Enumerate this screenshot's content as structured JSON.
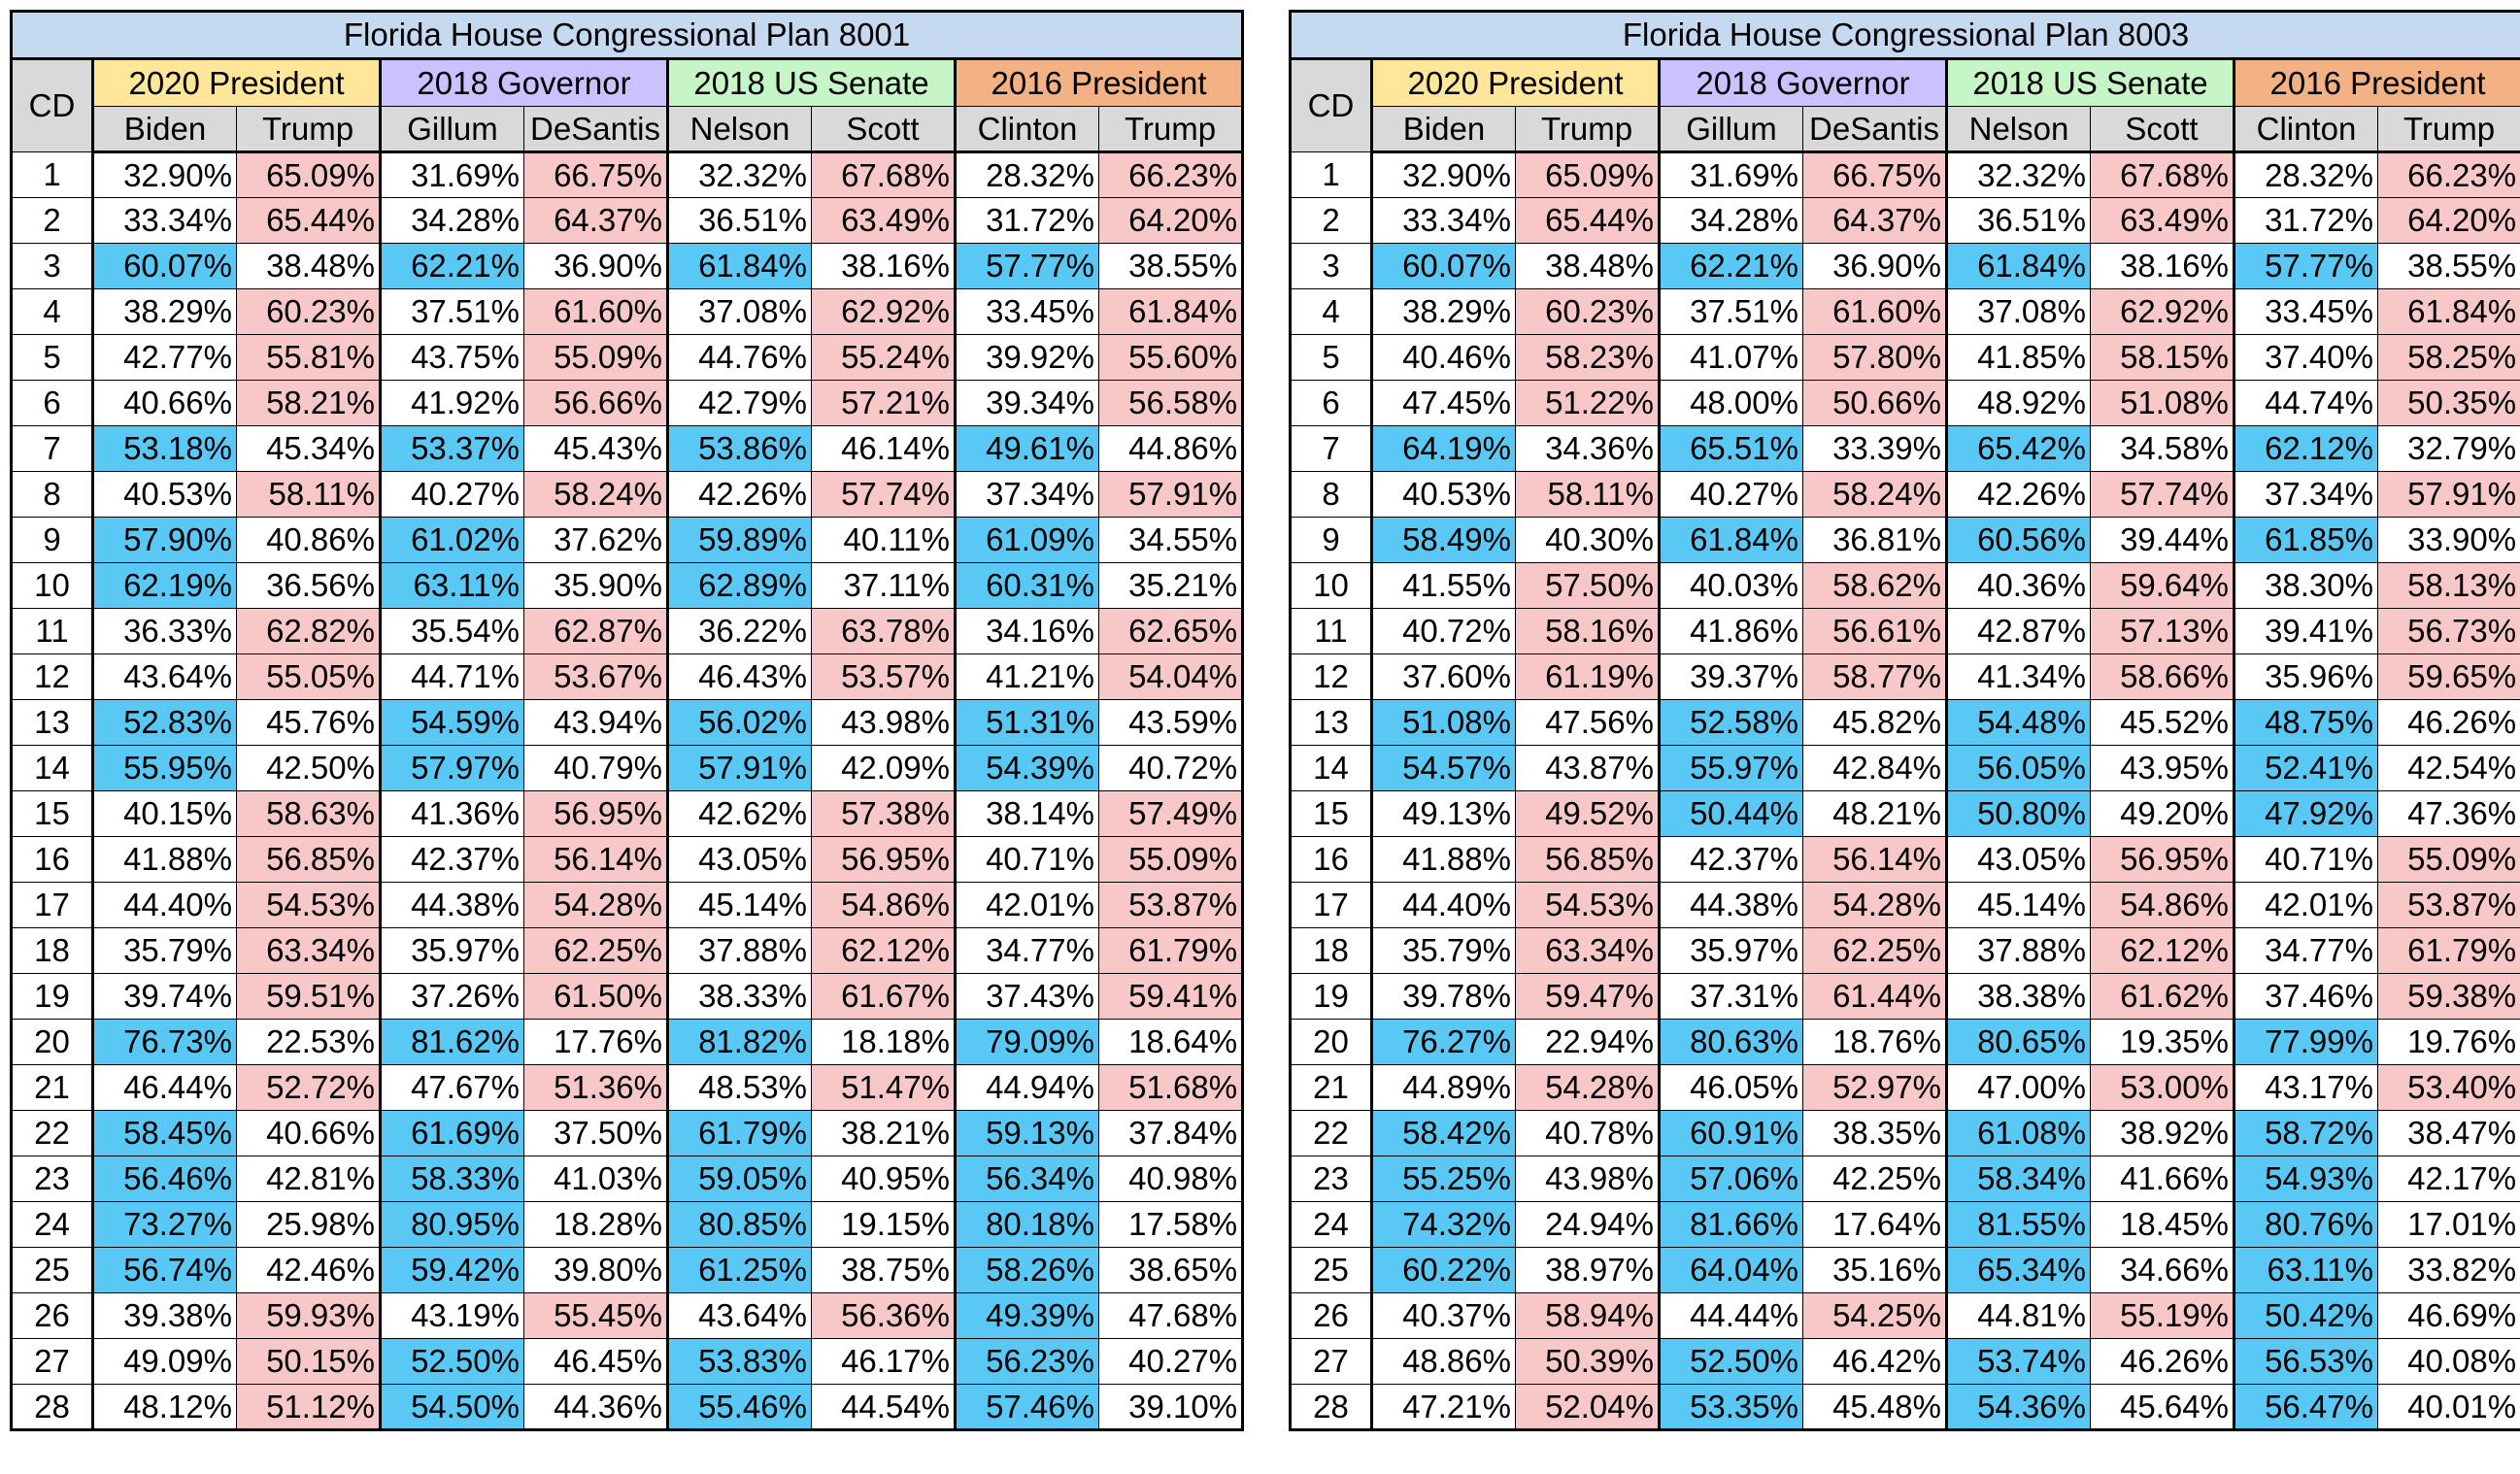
{
  "colors": {
    "title_bg": "#c5d9f1",
    "candidate_header_bg": "#d9d9d9",
    "dem_win_highlight": "#5ac8f5",
    "rep_win_highlight": "#f8c8c8",
    "race_2020_president": "#ffe699",
    "race_2018_governor": "#c9c2ff",
    "race_2018_us_senate": "#c6f5c6",
    "race_2016_president": "#f4b183"
  },
  "cd_header": "CD",
  "races": [
    {
      "label": "2020 President",
      "color_key": "race_2020_president",
      "dem": "Biden",
      "rep": "Trump"
    },
    {
      "label": "2018 Governor",
      "color_key": "race_2018_governor",
      "dem": "Gillum",
      "rep": "DeSantis"
    },
    {
      "label": "2018 US Senate",
      "color_key": "race_2018_us_senate",
      "dem": "Nelson",
      "rep": "Scott"
    },
    {
      "label": "2016 President",
      "color_key": "race_2016_president",
      "dem": "Clinton",
      "rep": "Trump"
    }
  ],
  "tables": [
    {
      "title": "Florida House Congressional Plan 8001",
      "rows": [
        {
          "cd": "1",
          "values": [
            "32.90%",
            "65.09%",
            "31.69%",
            "66.75%",
            "32.32%",
            "67.68%",
            "28.32%",
            "66.23%"
          ]
        },
        {
          "cd": "2",
          "values": [
            "33.34%",
            "65.44%",
            "34.28%",
            "64.37%",
            "36.51%",
            "63.49%",
            "31.72%",
            "64.20%"
          ]
        },
        {
          "cd": "3",
          "values": [
            "60.07%",
            "38.48%",
            "62.21%",
            "36.90%",
            "61.84%",
            "38.16%",
            "57.77%",
            "38.55%"
          ]
        },
        {
          "cd": "4",
          "values": [
            "38.29%",
            "60.23%",
            "37.51%",
            "61.60%",
            "37.08%",
            "62.92%",
            "33.45%",
            "61.84%"
          ]
        },
        {
          "cd": "5",
          "values": [
            "42.77%",
            "55.81%",
            "43.75%",
            "55.09%",
            "44.76%",
            "55.24%",
            "39.92%",
            "55.60%"
          ]
        },
        {
          "cd": "6",
          "values": [
            "40.66%",
            "58.21%",
            "41.92%",
            "56.66%",
            "42.79%",
            "57.21%",
            "39.34%",
            "56.58%"
          ]
        },
        {
          "cd": "7",
          "values": [
            "53.18%",
            "45.34%",
            "53.37%",
            "45.43%",
            "53.86%",
            "46.14%",
            "49.61%",
            "44.86%"
          ]
        },
        {
          "cd": "8",
          "values": [
            "40.53%",
            "58.11%",
            "40.27%",
            "58.24%",
            "42.26%",
            "57.74%",
            "37.34%",
            "57.91%"
          ]
        },
        {
          "cd": "9",
          "values": [
            "57.90%",
            "40.86%",
            "61.02%",
            "37.62%",
            "59.89%",
            "40.11%",
            "61.09%",
            "34.55%"
          ]
        },
        {
          "cd": "10",
          "values": [
            "62.19%",
            "36.56%",
            "63.11%",
            "35.90%",
            "62.89%",
            "37.11%",
            "60.31%",
            "35.21%"
          ]
        },
        {
          "cd": "11",
          "values": [
            "36.33%",
            "62.82%",
            "35.54%",
            "62.87%",
            "36.22%",
            "63.78%",
            "34.16%",
            "62.65%"
          ]
        },
        {
          "cd": "12",
          "values": [
            "43.64%",
            "55.05%",
            "44.71%",
            "53.67%",
            "46.43%",
            "53.57%",
            "41.21%",
            "54.04%"
          ]
        },
        {
          "cd": "13",
          "values": [
            "52.83%",
            "45.76%",
            "54.59%",
            "43.94%",
            "56.02%",
            "43.98%",
            "51.31%",
            "43.59%"
          ]
        },
        {
          "cd": "14",
          "values": [
            "55.95%",
            "42.50%",
            "57.97%",
            "40.79%",
            "57.91%",
            "42.09%",
            "54.39%",
            "40.72%"
          ]
        },
        {
          "cd": "15",
          "values": [
            "40.15%",
            "58.63%",
            "41.36%",
            "56.95%",
            "42.62%",
            "57.38%",
            "38.14%",
            "57.49%"
          ]
        },
        {
          "cd": "16",
          "values": [
            "41.88%",
            "56.85%",
            "42.37%",
            "56.14%",
            "43.05%",
            "56.95%",
            "40.71%",
            "55.09%"
          ]
        },
        {
          "cd": "17",
          "values": [
            "44.40%",
            "54.53%",
            "44.38%",
            "54.28%",
            "45.14%",
            "54.86%",
            "42.01%",
            "53.87%"
          ]
        },
        {
          "cd": "18",
          "values": [
            "35.79%",
            "63.34%",
            "35.97%",
            "62.25%",
            "37.88%",
            "62.12%",
            "34.77%",
            "61.79%"
          ]
        },
        {
          "cd": "19",
          "values": [
            "39.74%",
            "59.51%",
            "37.26%",
            "61.50%",
            "38.33%",
            "61.67%",
            "37.43%",
            "59.41%"
          ]
        },
        {
          "cd": "20",
          "values": [
            "76.73%",
            "22.53%",
            "81.62%",
            "17.76%",
            "81.82%",
            "18.18%",
            "79.09%",
            "18.64%"
          ]
        },
        {
          "cd": "21",
          "values": [
            "46.44%",
            "52.72%",
            "47.67%",
            "51.36%",
            "48.53%",
            "51.47%",
            "44.94%",
            "51.68%"
          ]
        },
        {
          "cd": "22",
          "values": [
            "58.45%",
            "40.66%",
            "61.69%",
            "37.50%",
            "61.79%",
            "38.21%",
            "59.13%",
            "37.84%"
          ]
        },
        {
          "cd": "23",
          "values": [
            "56.46%",
            "42.81%",
            "58.33%",
            "41.03%",
            "59.05%",
            "40.95%",
            "56.34%",
            "40.98%"
          ]
        },
        {
          "cd": "24",
          "values": [
            "73.27%",
            "25.98%",
            "80.95%",
            "18.28%",
            "80.85%",
            "19.15%",
            "80.18%",
            "17.58%"
          ]
        },
        {
          "cd": "25",
          "values": [
            "56.74%",
            "42.46%",
            "59.42%",
            "39.80%",
            "61.25%",
            "38.75%",
            "58.26%",
            "38.65%"
          ]
        },
        {
          "cd": "26",
          "values": [
            "39.38%",
            "59.93%",
            "43.19%",
            "55.45%",
            "43.64%",
            "56.36%",
            "49.39%",
            "47.68%"
          ]
        },
        {
          "cd": "27",
          "values": [
            "49.09%",
            "50.15%",
            "52.50%",
            "46.45%",
            "53.83%",
            "46.17%",
            "56.23%",
            "40.27%"
          ]
        },
        {
          "cd": "28",
          "values": [
            "48.12%",
            "51.12%",
            "54.50%",
            "44.36%",
            "55.46%",
            "44.54%",
            "57.46%",
            "39.10%"
          ]
        }
      ]
    },
    {
      "title": "Florida House Congressional Plan 8003",
      "rows": [
        {
          "cd": "1",
          "values": [
            "32.90%",
            "65.09%",
            "31.69%",
            "66.75%",
            "32.32%",
            "67.68%",
            "28.32%",
            "66.23%"
          ]
        },
        {
          "cd": "2",
          "values": [
            "33.34%",
            "65.44%",
            "34.28%",
            "64.37%",
            "36.51%",
            "63.49%",
            "31.72%",
            "64.20%"
          ]
        },
        {
          "cd": "3",
          "values": [
            "60.07%",
            "38.48%",
            "62.21%",
            "36.90%",
            "61.84%",
            "38.16%",
            "57.77%",
            "38.55%"
          ]
        },
        {
          "cd": "4",
          "values": [
            "38.29%",
            "60.23%",
            "37.51%",
            "61.60%",
            "37.08%",
            "62.92%",
            "33.45%",
            "61.84%"
          ]
        },
        {
          "cd": "5",
          "values": [
            "40.46%",
            "58.23%",
            "41.07%",
            "57.80%",
            "41.85%",
            "58.15%",
            "37.40%",
            "58.25%"
          ]
        },
        {
          "cd": "6",
          "values": [
            "47.45%",
            "51.22%",
            "48.00%",
            "50.66%",
            "48.92%",
            "51.08%",
            "44.74%",
            "50.35%"
          ]
        },
        {
          "cd": "7",
          "values": [
            "64.19%",
            "34.36%",
            "65.51%",
            "33.39%",
            "65.42%",
            "34.58%",
            "62.12%",
            "32.79%"
          ]
        },
        {
          "cd": "8",
          "values": [
            "40.53%",
            "58.11%",
            "40.27%",
            "58.24%",
            "42.26%",
            "57.74%",
            "37.34%",
            "57.91%"
          ]
        },
        {
          "cd": "9",
          "values": [
            "58.49%",
            "40.30%",
            "61.84%",
            "36.81%",
            "60.56%",
            "39.44%",
            "61.85%",
            "33.90%"
          ]
        },
        {
          "cd": "10",
          "values": [
            "41.55%",
            "57.50%",
            "40.03%",
            "58.62%",
            "40.36%",
            "59.64%",
            "38.30%",
            "58.13%"
          ]
        },
        {
          "cd": "11",
          "values": [
            "40.72%",
            "58.16%",
            "41.86%",
            "56.61%",
            "42.87%",
            "57.13%",
            "39.41%",
            "56.73%"
          ]
        },
        {
          "cd": "12",
          "values": [
            "37.60%",
            "61.19%",
            "39.37%",
            "58.77%",
            "41.34%",
            "58.66%",
            "35.96%",
            "59.65%"
          ]
        },
        {
          "cd": "13",
          "values": [
            "51.08%",
            "47.56%",
            "52.58%",
            "45.82%",
            "54.48%",
            "45.52%",
            "48.75%",
            "46.26%"
          ]
        },
        {
          "cd": "14",
          "values": [
            "54.57%",
            "43.87%",
            "55.97%",
            "42.84%",
            "56.05%",
            "43.95%",
            "52.41%",
            "42.54%"
          ]
        },
        {
          "cd": "15",
          "values": [
            "49.13%",
            "49.52%",
            "50.44%",
            "48.21%",
            "50.80%",
            "49.20%",
            "47.92%",
            "47.36%"
          ]
        },
        {
          "cd": "16",
          "values": [
            "41.88%",
            "56.85%",
            "42.37%",
            "56.14%",
            "43.05%",
            "56.95%",
            "40.71%",
            "55.09%"
          ]
        },
        {
          "cd": "17",
          "values": [
            "44.40%",
            "54.53%",
            "44.38%",
            "54.28%",
            "45.14%",
            "54.86%",
            "42.01%",
            "53.87%"
          ]
        },
        {
          "cd": "18",
          "values": [
            "35.79%",
            "63.34%",
            "35.97%",
            "62.25%",
            "37.88%",
            "62.12%",
            "34.77%",
            "61.79%"
          ]
        },
        {
          "cd": "19",
          "values": [
            "39.78%",
            "59.47%",
            "37.31%",
            "61.44%",
            "38.38%",
            "61.62%",
            "37.46%",
            "59.38%"
          ]
        },
        {
          "cd": "20",
          "values": [
            "76.27%",
            "22.94%",
            "80.63%",
            "18.76%",
            "80.65%",
            "19.35%",
            "77.99%",
            "19.76%"
          ]
        },
        {
          "cd": "21",
          "values": [
            "44.89%",
            "54.28%",
            "46.05%",
            "52.97%",
            "47.00%",
            "53.00%",
            "43.17%",
            "53.40%"
          ]
        },
        {
          "cd": "22",
          "values": [
            "58.42%",
            "40.78%",
            "60.91%",
            "38.35%",
            "61.08%",
            "38.92%",
            "58.72%",
            "38.47%"
          ]
        },
        {
          "cd": "23",
          "values": [
            "55.25%",
            "43.98%",
            "57.06%",
            "42.25%",
            "58.34%",
            "41.66%",
            "54.93%",
            "42.17%"
          ]
        },
        {
          "cd": "24",
          "values": [
            "74.32%",
            "24.94%",
            "81.66%",
            "17.64%",
            "81.55%",
            "18.45%",
            "80.76%",
            "17.01%"
          ]
        },
        {
          "cd": "25",
          "values": [
            "60.22%",
            "38.97%",
            "64.04%",
            "35.16%",
            "65.34%",
            "34.66%",
            "63.11%",
            "33.82%"
          ]
        },
        {
          "cd": "26",
          "values": [
            "40.37%",
            "58.94%",
            "44.44%",
            "54.25%",
            "44.81%",
            "55.19%",
            "50.42%",
            "46.69%"
          ]
        },
        {
          "cd": "27",
          "values": [
            "48.86%",
            "50.39%",
            "52.50%",
            "46.42%",
            "53.74%",
            "46.26%",
            "56.53%",
            "40.08%"
          ]
        },
        {
          "cd": "28",
          "values": [
            "47.21%",
            "52.04%",
            "53.35%",
            "45.48%",
            "54.36%",
            "45.64%",
            "56.47%",
            "40.01%"
          ]
        }
      ]
    }
  ]
}
